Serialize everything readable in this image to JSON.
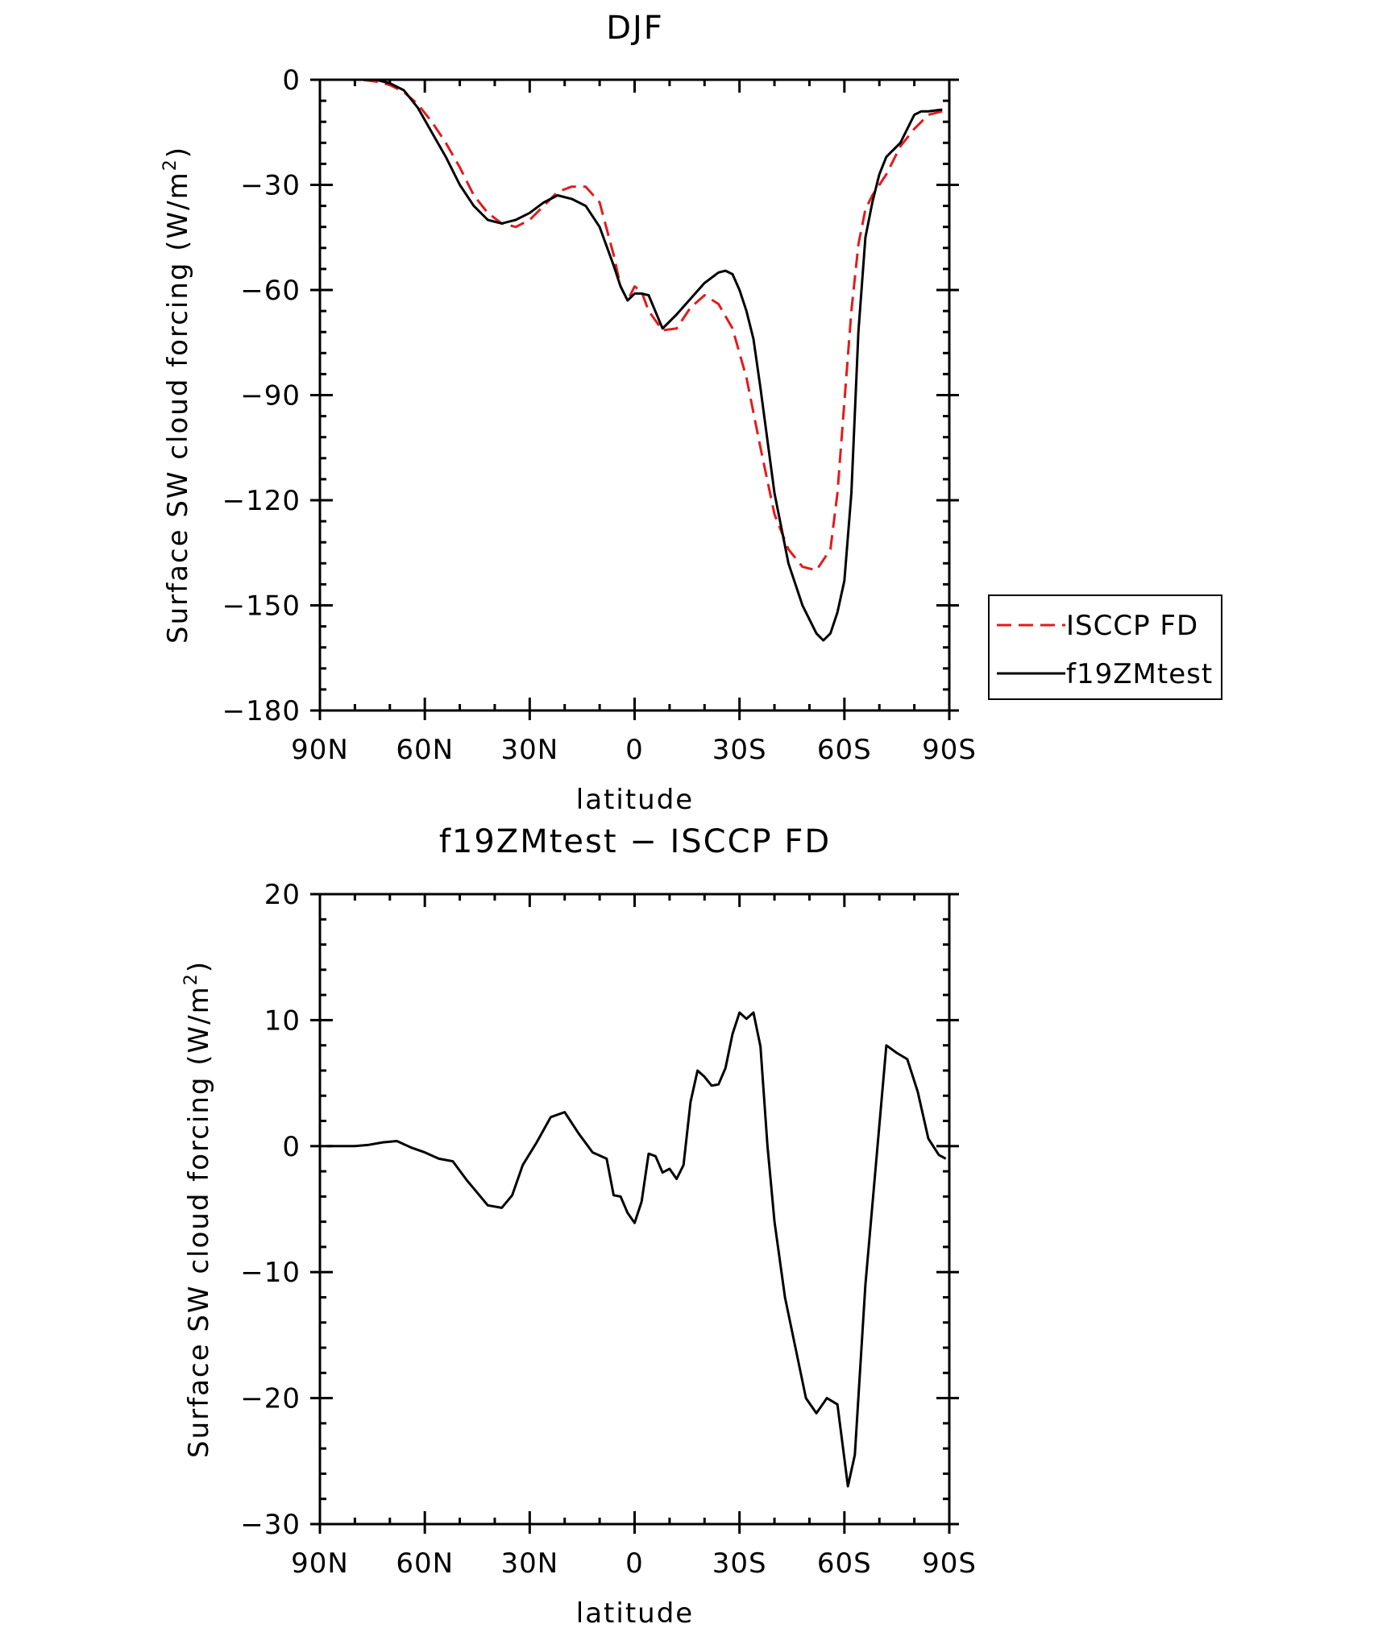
{
  "chart_data": [
    {
      "type": "line",
      "title": "DJF",
      "xlabel": "latitude",
      "ylabel": "Surface SW cloud forcing (W/m²)",
      "ylabel_main": "Surface SW cloud forcing (W/m",
      "ylabel_sup": "2",
      "ylabel_close": ")",
      "xlim": [
        90,
        -90
      ],
      "ylim": [
        -180,
        0
      ],
      "xticks": [
        90,
        60,
        30,
        0,
        -30,
        -60,
        -90
      ],
      "xticklabels": [
        "90N",
        "60N",
        "30N",
        "0",
        "30S",
        "60S",
        "90S"
      ],
      "yticks": [
        0,
        -30,
        -60,
        -90,
        -120,
        -150,
        -180
      ],
      "yticklabels": [
        "0",
        "−30",
        "−60",
        "−90",
        "−120",
        "−150",
        "−180"
      ],
      "legend_position": "outside-right",
      "series": [
        {
          "name": "ISCCP FD",
          "color": "#e41a1c",
          "dash": "dashed",
          "x": [
            90,
            86,
            82,
            78,
            74,
            70,
            66,
            62,
            58,
            54,
            50,
            46,
            42,
            38,
            34,
            30,
            26,
            22,
            18,
            14,
            10,
            6,
            4,
            2,
            0,
            -2,
            -4,
            -8,
            -12,
            -16,
            -20,
            -24,
            -28,
            -32,
            -36,
            -40,
            -44,
            -48,
            -52,
            -56,
            -58,
            -60,
            -62,
            -64,
            -66,
            -68,
            -70,
            -72,
            -76,
            -80,
            -84,
            -88
          ],
          "y": [
            0,
            0,
            0,
            0,
            -0.5,
            -1.5,
            -3.5,
            -7,
            -12,
            -18,
            -25,
            -33,
            -38,
            -41,
            -42,
            -40,
            -36,
            -32,
            -30.5,
            -30.5,
            -35,
            -50,
            -59,
            -63,
            -59,
            -60.5,
            -66,
            -71.5,
            -71,
            -65,
            -61.5,
            -64,
            -71,
            -85,
            -105,
            -124,
            -134,
            -139,
            -140,
            -134,
            -118,
            -92,
            -66,
            -47,
            -37,
            -33,
            -30,
            -27,
            -19,
            -14,
            -10,
            -9
          ]
        },
        {
          "name": "f19ZMtest",
          "color": "#000000",
          "dash": "solid",
          "x": [
            90,
            86,
            82,
            78,
            74,
            70,
            66,
            62,
            58,
            54,
            50,
            46,
            42,
            38,
            34,
            30,
            26,
            22,
            18,
            14,
            10,
            6,
            4,
            2,
            0,
            -2,
            -4,
            -8,
            -12,
            -16,
            -20,
            -24,
            -26,
            -28,
            -30,
            -32,
            -34,
            -36,
            -40,
            -44,
            -48,
            -52,
            -54,
            -56,
            -58,
            -60,
            -62,
            -64,
            -66,
            -68,
            -70,
            -72,
            -76,
            -80,
            -82,
            -84,
            -88
          ],
          "y": [
            0,
            0,
            0,
            0,
            0,
            -1,
            -3,
            -8,
            -15,
            -22,
            -30,
            -36,
            -40,
            -41,
            -40,
            -38,
            -35,
            -33,
            -34,
            -36,
            -42,
            -53,
            -59,
            -63,
            -61,
            -61,
            -61.5,
            -71,
            -67,
            -62.5,
            -58,
            -55,
            -54.5,
            -55.5,
            -60,
            -66,
            -74,
            -88,
            -118,
            -138,
            -150,
            -158,
            -160,
            -158,
            -152,
            -143,
            -118,
            -72,
            -45,
            -35,
            -27,
            -22,
            -18,
            -10,
            -9,
            -9,
            -8.5
          ]
        }
      ]
    },
    {
      "type": "line",
      "title": "f19ZMtest − ISCCP FD",
      "xlabel": "latitude",
      "ylabel": "Surface SW cloud forcing (W/m²)",
      "ylabel_main": "Surface SW cloud forcing (W/m",
      "ylabel_sup": "2",
      "ylabel_close": ")",
      "xlim": [
        90,
        -90
      ],
      "ylim": [
        -30,
        20
      ],
      "xticks": [
        90,
        60,
        30,
        0,
        -30,
        -60,
        -90
      ],
      "xticklabels": [
        "90N",
        "60N",
        "30N",
        "0",
        "30S",
        "60S",
        "90S"
      ],
      "yticks": [
        20,
        10,
        0,
        -10,
        -20,
        -30
      ],
      "yticklabels": [
        "20",
        "10",
        "0",
        "−10",
        "−20",
        "−30"
      ],
      "series": [
        {
          "color": "#000000",
          "dash": "solid",
          "x": [
            88,
            84,
            80,
            76,
            72,
            68,
            64,
            60,
            56,
            52,
            48,
            45,
            42,
            38,
            35,
            32,
            28,
            24,
            20,
            16,
            12,
            8,
            6,
            4,
            2,
            0,
            -2,
            -4,
            -6,
            -8,
            -10,
            -12,
            -14,
            -16,
            -18,
            -20,
            -22,
            -24,
            -26,
            -28,
            -30,
            -32,
            -34,
            -36,
            -38,
            -40,
            -43,
            -46,
            -49,
            -52,
            -55,
            -58,
            -61,
            -63,
            -66,
            -69,
            -72,
            -75,
            -78,
            -81,
            -84,
            -87,
            -89
          ],
          "y": [
            0,
            0,
            0,
            0.1,
            0.3,
            0.4,
            -0.1,
            -0.5,
            -1,
            -1.2,
            -2.7,
            -3.7,
            -4.7,
            -4.9,
            -3.9,
            -1.5,
            0.3,
            2.3,
            2.7,
            1,
            -0.5,
            -1,
            -3.9,
            -4,
            -5.3,
            -6.1,
            -4.4,
            -0.6,
            -0.8,
            -2.1,
            -1.8,
            -2.6,
            -1.5,
            3.5,
            6,
            5.5,
            4.8,
            4.9,
            6.2,
            8.9,
            10.6,
            10.1,
            10.6,
            7.9,
            0,
            -6,
            -12,
            -16,
            -20,
            -21.2,
            -20,
            -20.5,
            -27,
            -24.5,
            -11,
            -1.5,
            8,
            7.4,
            6.9,
            4.3,
            0.6,
            -0.7,
            -1
          ]
        }
      ]
    }
  ]
}
